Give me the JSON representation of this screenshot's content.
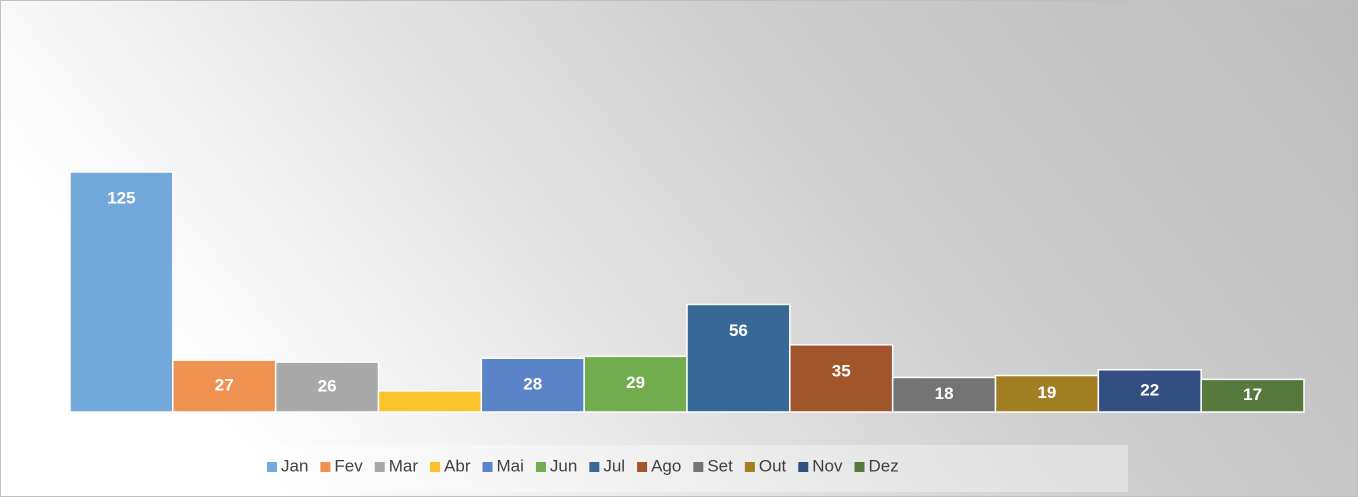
{
  "chart_data": {
    "type": "bar",
    "categories": [
      "Jan",
      "Fev",
      "Mar",
      "Abr",
      "Mai",
      "Jun",
      "Jul",
      "Ago",
      "Set",
      "Out",
      "Nov",
      "Dez"
    ],
    "values": [
      125,
      27,
      26,
      11,
      28,
      29,
      56,
      35,
      18,
      19,
      22,
      17
    ],
    "value_labels": [
      "125",
      "27",
      "26",
      null,
      "28",
      "29",
      "56",
      "35",
      "18",
      "19",
      "22",
      "17"
    ],
    "colors": [
      "#72a9da",
      "#ee9151",
      "#a9a9a9",
      "#fcc22c",
      "#5b84c8",
      "#71ad4d",
      "#386996",
      "#a1552a",
      "#747474",
      "#a17e21",
      "#334f81",
      "#567a3b"
    ],
    "ylim": [
      0,
      200
    ],
    "legend": "bottom"
  }
}
